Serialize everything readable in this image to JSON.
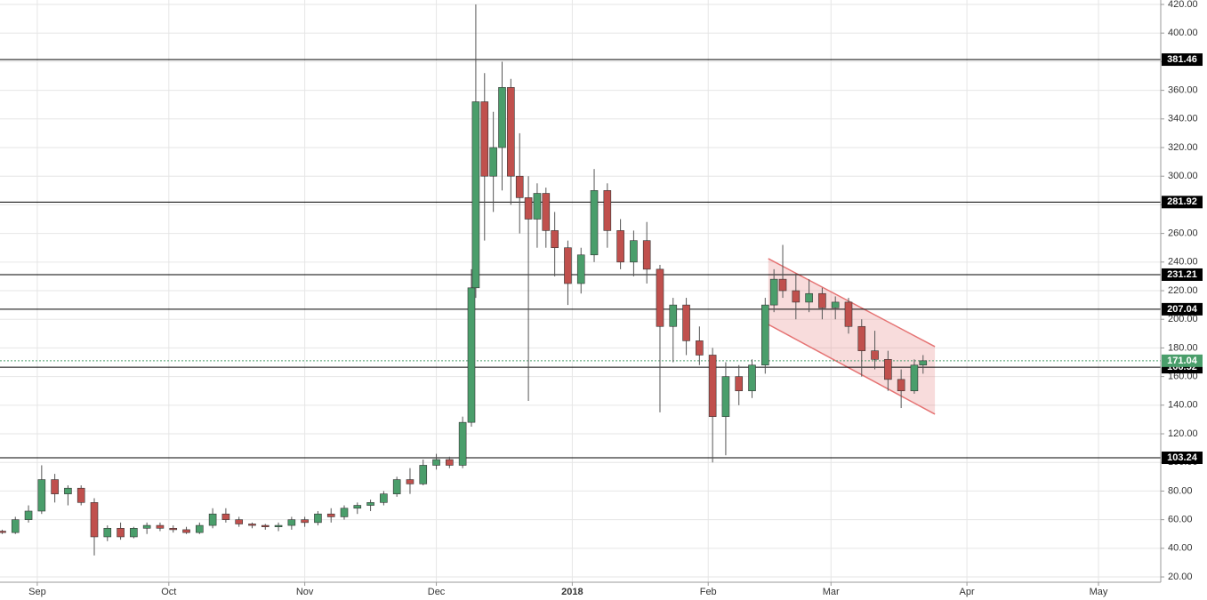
{
  "chart_data": {
    "type": "candlestick",
    "xlim": [
      -8.5,
      256.2
    ],
    "xticks": [
      {
        "value": 0,
        "label": "Sep"
      },
      {
        "value": 30,
        "label": "Oct"
      },
      {
        "value": 61,
        "label": "Nov"
      },
      {
        "value": 91,
        "label": "Dec"
      },
      {
        "value": 122,
        "label": "2018"
      },
      {
        "value": 153,
        "label": "Feb"
      },
      {
        "value": 181,
        "label": "Mar"
      },
      {
        "value": 212,
        "label": "Apr"
      },
      {
        "value": 242,
        "label": "May"
      }
    ],
    "ylim": [
      16.3,
      423.1
    ],
    "yticks": [
      {
        "value": 20,
        "label": "20.00"
      },
      {
        "value": 40,
        "label": "40.00"
      },
      {
        "value": 60,
        "label": "60.00"
      },
      {
        "value": 80,
        "label": "80.00"
      },
      {
        "value": 100,
        "label": "100.00"
      },
      {
        "value": 120,
        "label": "120.00"
      },
      {
        "value": 140,
        "label": "140.00"
      },
      {
        "value": 160,
        "label": "160.00"
      },
      {
        "value": 180,
        "label": "180.00"
      },
      {
        "value": 200,
        "label": "200.00"
      },
      {
        "value": 220,
        "label": "220.00"
      },
      {
        "value": 240,
        "label": "240.00"
      },
      {
        "value": 260,
        "label": "260.00"
      },
      {
        "value": 280,
        "label": "280.00"
      },
      {
        "value": 300,
        "label": "300.00"
      },
      {
        "value": 320,
        "label": "320.00"
      },
      {
        "value": 340,
        "label": "340.00"
      },
      {
        "value": 360,
        "label": "360.00"
      },
      {
        "value": 380,
        "label": "380.00"
      },
      {
        "value": 400,
        "label": "400.00"
      },
      {
        "value": 420,
        "label": "420.00"
      }
    ],
    "grid": true,
    "up_color": "#4a9e6b",
    "down_color": "#c0504d",
    "wick_color": "#555555",
    "candles": {
      "x": [
        -8,
        -5,
        -2,
        1,
        4,
        7,
        10,
        13,
        16,
        19,
        22,
        25,
        28,
        31,
        34,
        37,
        40,
        43,
        46,
        49,
        52,
        55,
        58,
        61,
        64,
        67,
        70,
        73,
        76,
        79,
        82,
        85,
        88,
        91,
        94,
        97,
        99,
        100,
        102,
        104,
        106,
        108,
        110,
        112,
        114,
        116,
        118,
        121,
        124,
        127,
        130,
        133,
        136,
        139,
        142,
        145,
        148,
        151,
        154,
        157,
        160,
        163,
        166,
        168,
        170,
        173,
        176,
        179,
        182,
        185,
        188,
        191,
        194,
        197,
        200,
        202
      ],
      "open": [
        52,
        51,
        60,
        66,
        88,
        78,
        82,
        72,
        48,
        54,
        48,
        54,
        56,
        54,
        53,
        51,
        56,
        64,
        60,
        57,
        56,
        55,
        56,
        60,
        58,
        64,
        62,
        68,
        70,
        72,
        78,
        88,
        85,
        98,
        102,
        98,
        128,
        222,
        352,
        300,
        320,
        362,
        300,
        285,
        270,
        288,
        262,
        250,
        225,
        245,
        290,
        262,
        240,
        255,
        235,
        195,
        210,
        185,
        175,
        132,
        160,
        150,
        168,
        210,
        228,
        220,
        212,
        218,
        208,
        212,
        195,
        178,
        172,
        158,
        150,
        168
      ],
      "high": [
        53,
        62,
        70,
        98,
        92,
        84,
        84,
        75,
        56,
        58,
        55,
        58,
        58,
        56,
        55,
        58,
        68,
        68,
        62,
        58,
        57,
        58,
        62,
        62,
        66,
        68,
        70,
        72,
        74,
        80,
        90,
        96,
        102,
        106,
        104,
        132,
        235,
        420,
        372,
        345,
        380,
        368,
        330,
        300,
        295,
        292,
        275,
        255,
        250,
        305,
        295,
        270,
        262,
        268,
        238,
        215,
        215,
        195,
        180,
        170,
        168,
        172,
        215,
        235,
        252,
        232,
        228,
        222,
        216,
        215,
        200,
        192,
        178,
        165,
        172,
        175
      ],
      "low": [
        50,
        50,
        58,
        64,
        72,
        70,
        70,
        35,
        45,
        46,
        47,
        50,
        52,
        51,
        50,
        50,
        54,
        58,
        55,
        54,
        53,
        52,
        53,
        55,
        56,
        58,
        60,
        64,
        66,
        70,
        76,
        78,
        84,
        95,
        96,
        96,
        125,
        215,
        255,
        275,
        290,
        280,
        260,
        143,
        250,
        250,
        230,
        210,
        218,
        240,
        250,
        235,
        230,
        225,
        135,
        170,
        175,
        168,
        100,
        105,
        140,
        145,
        162,
        205,
        215,
        200,
        205,
        200,
        200,
        190,
        160,
        165,
        150,
        138,
        148,
        162
      ],
      "close": [
        51,
        60,
        66,
        88,
        78,
        82,
        72,
        48,
        54,
        48,
        54,
        56,
        54,
        53,
        51,
        56,
        64,
        60,
        57,
        56,
        55,
        56,
        60,
        58,
        64,
        62,
        68,
        70,
        72,
        78,
        88,
        85,
        98,
        102,
        98,
        128,
        222,
        352,
        300,
        320,
        362,
        300,
        285,
        270,
        288,
        262,
        250,
        225,
        245,
        290,
        262,
        240,
        255,
        235,
        195,
        210,
        185,
        175,
        132,
        160,
        150,
        168,
        210,
        228,
        220,
        212,
        218,
        208,
        212,
        195,
        178,
        172,
        158,
        150,
        168,
        171.04
      ]
    },
    "levels": [
      381.46,
      281.92,
      231.21,
      207.04,
      166.52,
      103.24
    ],
    "level_color": "#000000",
    "last_price": 171.04,
    "last_price_color": "#4a9e6b",
    "channel": {
      "x": [
        166.7,
        204.7
      ],
      "upper": [
        242.4,
        180.9
      ],
      "lower": [
        196.4,
        133.7
      ],
      "color": "#e57373"
    }
  }
}
